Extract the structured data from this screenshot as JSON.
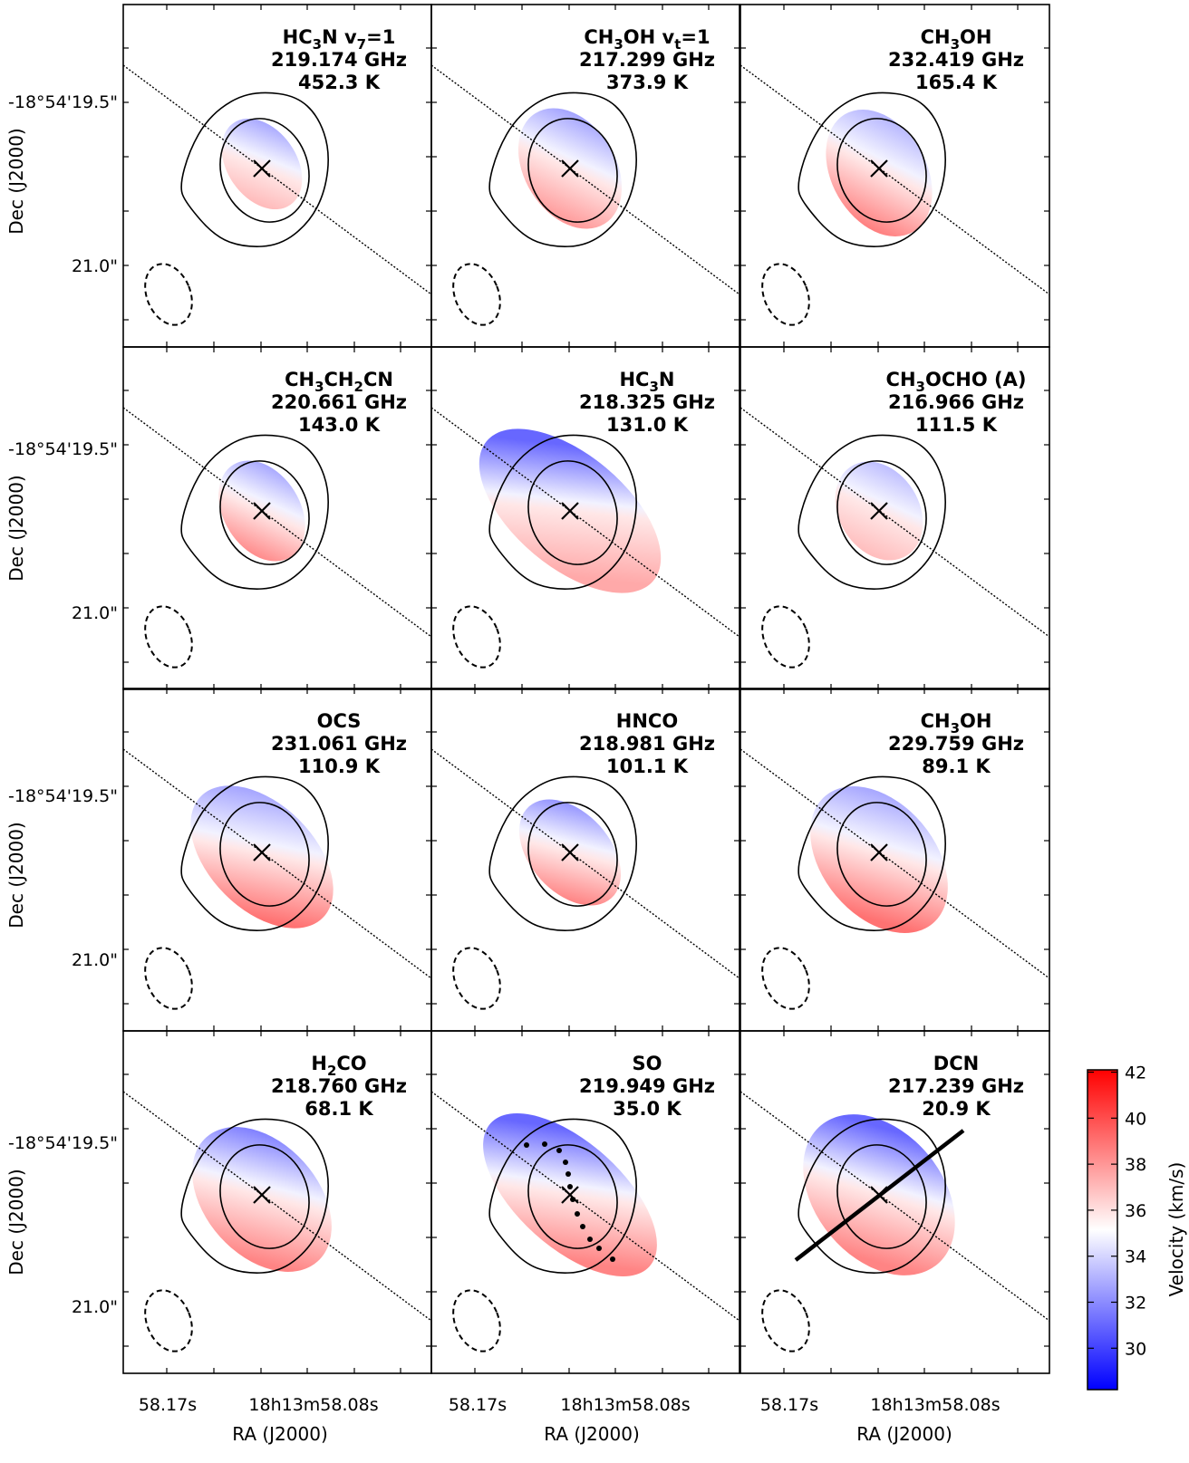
{
  "figure": {
    "xlabel": "RA (J2000)",
    "ylabel": "Dec (J2000)",
    "x_ticks": [
      "58.17s",
      "18h13m58.08s"
    ],
    "y_ticks": [
      "-18°54'19.5\"",
      "21.0\""
    ],
    "colorbar": {
      "label": "Velocity (km/s)",
      "range": [
        28.2,
        42.1
      ],
      "ticks": [
        30,
        32,
        34,
        36,
        38,
        40,
        42
      ],
      "colormap": "bwr",
      "low_color": "#0000ff",
      "mid_color": "#ffffff",
      "high_color": "#ff0000"
    }
  },
  "chart_data": {
    "type": "heatmap",
    "xlabel": "RA (J2000)",
    "ylabel": "Dec (J2000)",
    "colorbar_label": "Velocity (km/s)",
    "clim": [
      28.2,
      42.1
    ],
    "grid": false,
    "panels": [
      {
        "species": "HC3N v7=1",
        "lines": [
          "HC3N v7=1",
          "219.174 GHz",
          "452.3 K"
        ],
        "frequency_ghz": 219.174,
        "energy_k": 452.3,
        "v_blue": 31.5,
        "v_red": 38.0
      },
      {
        "species": "CH3OH vt=1",
        "lines": [
          "CH3OH vt=1",
          "217.299 GHz",
          "373.9 K"
        ],
        "frequency_ghz": 217.299,
        "energy_k": 373.9,
        "v_blue": 32.0,
        "v_red": 38.5
      },
      {
        "species": "CH3OH",
        "lines": [
          "CH3OH",
          "232.419 GHz",
          "165.4 K"
        ],
        "frequency_ghz": 232.419,
        "energy_k": 165.4,
        "v_blue": 32.5,
        "v_red": 39.0
      },
      {
        "species": "CH3CH2CN",
        "lines": [
          "CH3CH2CN",
          "220.661 GHz",
          "143.0 K"
        ],
        "frequency_ghz": 220.661,
        "energy_k": 143.0,
        "v_blue": 31.5,
        "v_red": 39.5
      },
      {
        "species": "HC3N",
        "lines": [
          "HC3N",
          "218.325 GHz",
          "131.0 K"
        ],
        "frequency_ghz": 218.325,
        "energy_k": 131.0,
        "v_blue": 31.0,
        "v_red": 37.5
      },
      {
        "species": "CH3OCHO (A)",
        "lines": [
          "CH3OCHO (A)",
          "216.966 GHz",
          "111.5 K"
        ],
        "frequency_ghz": 216.966,
        "energy_k": 111.5,
        "v_blue": 32.5,
        "v_red": 37.5
      },
      {
        "species": "OCS",
        "lines": [
          "OCS",
          "231.061 GHz",
          "110.9 K"
        ],
        "frequency_ghz": 231.061,
        "energy_k": 110.9,
        "v_blue": 32.5,
        "v_red": 39.0
      },
      {
        "species": "HNCO",
        "lines": [
          "HNCO",
          "218.981 GHz",
          "101.1 K"
        ],
        "frequency_ghz": 218.981,
        "energy_k": 101.1,
        "v_blue": 31.0,
        "v_red": 39.5
      },
      {
        "species": "CH3OH",
        "lines": [
          "CH3OH",
          "229.759 GHz",
          "89.1 K"
        ],
        "frequency_ghz": 229.759,
        "energy_k": 89.1,
        "v_blue": 32.5,
        "v_red": 39.0
      },
      {
        "species": "H2CO",
        "lines": [
          "H2CO",
          "218.760 GHz",
          "68.1 K"
        ],
        "frequency_ghz": 218.76,
        "energy_k": 68.1,
        "v_blue": 31.5,
        "v_red": 38.5
      },
      {
        "species": "SO",
        "lines": [
          "SO",
          "219.949 GHz",
          "35.0 K"
        ],
        "frequency_ghz": 219.949,
        "energy_k": 35.0,
        "v_blue": 31.0,
        "v_red": 38.5
      },
      {
        "species": "DCN",
        "lines": [
          "DCN",
          "217.239 GHz",
          "20.9 K"
        ],
        "frequency_ghz": 217.239,
        "energy_k": 20.9,
        "v_blue": 31.0,
        "v_red": 38.5
      }
    ]
  }
}
